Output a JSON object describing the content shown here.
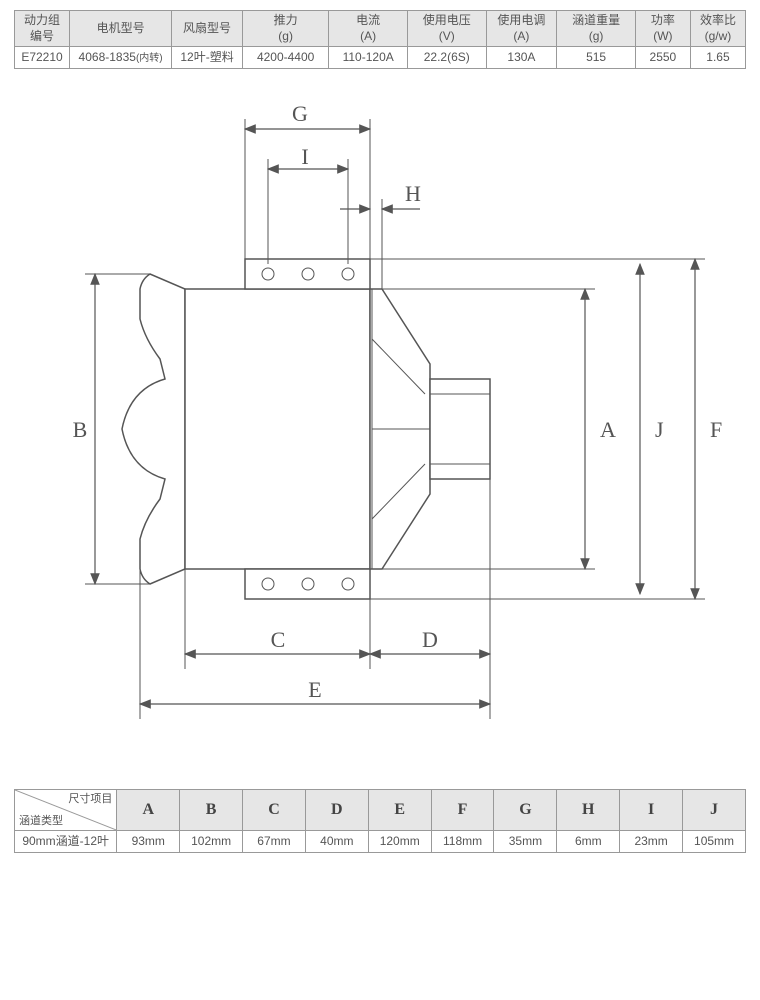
{
  "spec_table": {
    "headers": [
      {
        "line1": "动力组",
        "line2": "编号"
      },
      {
        "line1": "电机型号",
        "line2": ""
      },
      {
        "line1": "风扇型号",
        "line2": ""
      },
      {
        "line1": "推力",
        "line2": "(g)"
      },
      {
        "line1": "电流",
        "line2": "(A)"
      },
      {
        "line1": "使用电压",
        "line2": "(V)"
      },
      {
        "line1": "使用电调",
        "line2": "(A)"
      },
      {
        "line1": "涵道重量",
        "line2": "(g)"
      },
      {
        "line1": "功率",
        "line2": "(W)"
      },
      {
        "line1": "效率比",
        "line2": "(g/w)"
      }
    ],
    "row": [
      "E72210",
      "4068-1835",
      "12叶-塑料",
      "4200-4400",
      "110-120A",
      "22.2(6S)",
      "130A",
      "515",
      "2550",
      "1.65"
    ],
    "row_suffix_small": [
      "(内转)"
    ],
    "col_widths_pct": [
      7,
      13,
      9,
      11,
      10,
      10,
      9,
      10,
      7,
      7
    ]
  },
  "dim_table": {
    "corner_label": "尺寸项目",
    "row_header_label": "涵道类型",
    "letters": [
      "A",
      "B",
      "C",
      "D",
      "E",
      "F",
      "G",
      "H",
      "I",
      "J"
    ],
    "row_label": "90mm涵道-12叶",
    "values": [
      "93mm",
      "102mm",
      "67mm",
      "40mm",
      "120mm",
      "118mm",
      "35mm",
      "6mm",
      "23mm",
      "105mm"
    ]
  },
  "diagram": {
    "labels": [
      "A",
      "B",
      "C",
      "D",
      "E",
      "F",
      "G",
      "H",
      "I",
      "J"
    ],
    "stroke": "#555",
    "bg": "#ffffff"
  }
}
